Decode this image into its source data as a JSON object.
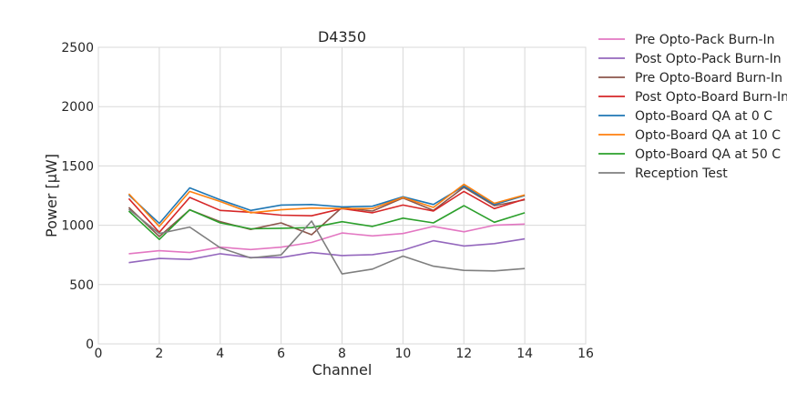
{
  "chart_data": {
    "type": "line",
    "title": "D4350",
    "xlabel": "Channel",
    "ylabel": "Power [μW]",
    "xlim": [
      0,
      16
    ],
    "ylim": [
      0,
      2500
    ],
    "xticks": [
      0,
      2,
      4,
      6,
      8,
      10,
      12,
      14,
      16
    ],
    "yticks": [
      0,
      500,
      1000,
      1500,
      2000,
      2500
    ],
    "grid": true,
    "legend_position": "outside-right",
    "x": [
      1,
      2,
      3,
      4,
      5,
      6,
      7,
      8,
      9,
      10,
      11,
      12,
      13,
      14
    ],
    "series": [
      {
        "name": "Pre Opto-Pack Burn-In",
        "color": "#e377c2",
        "values": [
          760,
          785,
          770,
          815,
          795,
          815,
          855,
          935,
          910,
          930,
          990,
          945,
          1000,
          1010
        ]
      },
      {
        "name": "Post Opto-Pack Burn-In",
        "color": "#9467bd",
        "values": [
          685,
          720,
          712,
          760,
          728,
          728,
          770,
          745,
          752,
          790,
          870,
          825,
          845,
          885
        ]
      },
      {
        "name": "Pre Opto-Board Burn-In",
        "color": "#8c564b",
        "values": [
          1150,
          905,
          1130,
          1030,
          965,
          1020,
          920,
          1150,
          1120,
          1230,
          1125,
          1320,
          1165,
          1215
        ]
      },
      {
        "name": "Post Opto-Board Burn-In",
        "color": "#d62728",
        "values": [
          1225,
          940,
          1235,
          1125,
          1110,
          1085,
          1080,
          1140,
          1105,
          1170,
          1120,
          1285,
          1140,
          1220
        ]
      },
      {
        "name": "Opto-Board QA at 0 C",
        "color": "#1f77b4",
        "values": [
          1255,
          1015,
          1315,
          1215,
          1125,
          1170,
          1175,
          1155,
          1160,
          1240,
          1175,
          1330,
          1175,
          1250
        ]
      },
      {
        "name": "Opto-Board QA at 10 C",
        "color": "#ff7f0e",
        "values": [
          1265,
          990,
          1285,
          1200,
          1105,
          1130,
          1145,
          1140,
          1140,
          1235,
          1150,
          1345,
          1185,
          1255
        ]
      },
      {
        "name": "Opto-Board QA at 50 C",
        "color": "#2ca02c",
        "values": [
          1120,
          880,
          1130,
          1020,
          970,
          975,
          980,
          1030,
          990,
          1060,
          1020,
          1165,
          1025,
          1105
        ]
      },
      {
        "name": "Reception Test",
        "color": "#7f7f7f",
        "values": [
          1135,
          930,
          985,
          810,
          725,
          750,
          1035,
          590,
          630,
          740,
          655,
          620,
          615,
          635
        ]
      }
    ]
  }
}
